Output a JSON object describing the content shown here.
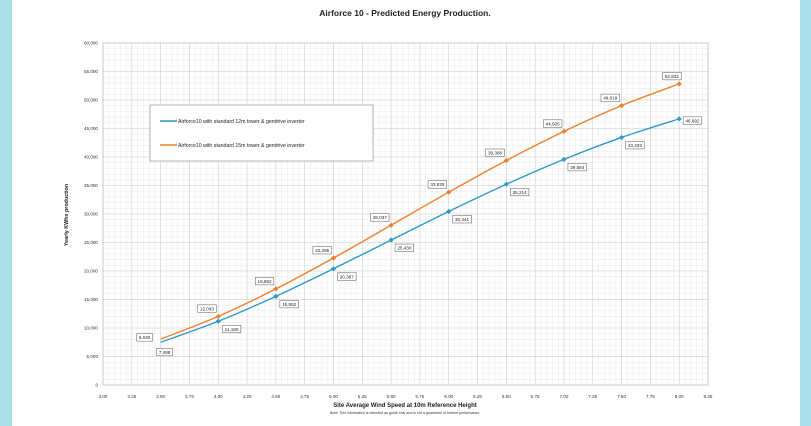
{
  "colors": {
    "background": "#a9dfe6",
    "panel": "#ffffff",
    "grid": "#d0d0d0",
    "series_12m": "#2e9ac4",
    "series_15m": "#f07f2c"
  },
  "chart_data": {
    "type": "line",
    "title": "Airforce 10 - Predicted Energy Production.",
    "xlabel": "Site Average Wind Speed at 10m Reference Height",
    "ylabel": "Yearly KWhs production",
    "note": "Note! This information is  intended as guide only and is not a guarantee of turbine performance.",
    "xlim": [
      3.0,
      8.25
    ],
    "ylim": [
      0,
      60000
    ],
    "x_ticks": [
      "3.00",
      "3.25",
      "3.50",
      "3.75",
      "4.00",
      "4.25",
      "4.50",
      "4.75",
      "5.00",
      "5.25",
      "5.50",
      "5.75",
      "6.00",
      "6.25",
      "6.50",
      "6.75",
      "7.00",
      "7.25",
      "7.50",
      "7.75",
      "8.00",
      "8.25"
    ],
    "y_ticks": [
      "0",
      "5,000",
      "10,000",
      "15,000",
      "20,000",
      "25,000",
      "30,000",
      "35,000",
      "40,000",
      "45,000",
      "50,000",
      "55,000",
      "60,000"
    ],
    "grid": true,
    "legend_position": "upper-left",
    "series": [
      {
        "name": "Airforce10 with standard 12m tower & gendrive inverter",
        "color": "#2e9ac4",
        "x": [
          3.5,
          4.0,
          4.5,
          5.0,
          5.5,
          6.0,
          6.5,
          7.0,
          7.5,
          8.0
        ],
        "values": [
          7488,
          11180,
          15552,
          20387,
          25430,
          30441,
          35214,
          39584,
          43433,
          46692
        ],
        "labels": [
          "7,488",
          "11,180",
          "15,552",
          "20,387",
          "25,430",
          "30,441",
          "35,214",
          "39,584",
          "43,433",
          "46,692"
        ]
      },
      {
        "name": "Airforce10 with standard 15m tower & gendrive inverter",
        "color": "#f07f2c",
        "x": [
          3.5,
          4.0,
          4.5,
          5.0,
          5.5,
          6.0,
          6.5,
          7.0,
          7.5,
          8.0
        ],
        "values": [
          8040,
          12043,
          16862,
          22285,
          28037,
          33825,
          39388,
          44505,
          49019,
          52832
        ],
        "labels": [
          "8,040",
          "12,043",
          "16,862",
          "22,285",
          "28,037",
          "33,825",
          "39,388",
          "44,505",
          "49,019",
          "52,832"
        ]
      }
    ]
  }
}
